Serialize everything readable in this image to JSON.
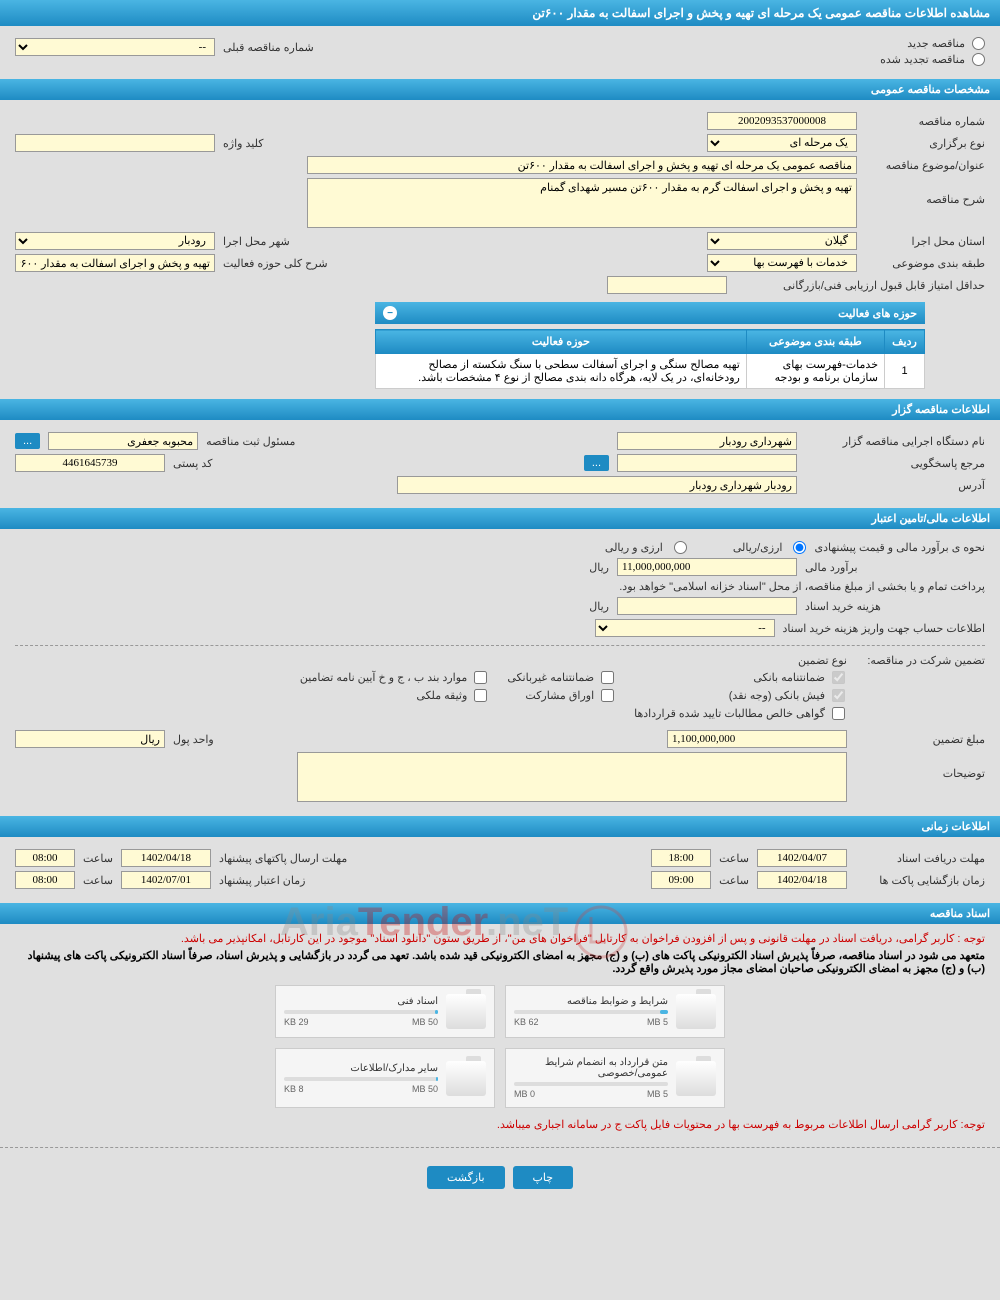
{
  "page": {
    "title": "مشاهده اطلاعات مناقصه عمومی یک مرحله ای تهیه و پخش و اجرای اسفالت به مقدار ۶۰۰تن",
    "bg_color": "#e0e0e0",
    "header_gradient": [
      "#4ab5e3",
      "#1e8bc3"
    ]
  },
  "tender_type": {
    "new_label": "مناقصه جدید",
    "renewed_label": "مناقصه تجدید شده",
    "prev_number_label": "شماره مناقصه قبلی",
    "prev_number_value": "--"
  },
  "general_spec": {
    "header": "مشخصات مناقصه عمومی",
    "tender_number_label": "شماره مناقصه",
    "tender_number": "2002093537000008",
    "holding_type_label": "نوع برگزاری",
    "holding_type": "یک مرحله ای",
    "keyword_label": "کلید واژه",
    "keyword": "",
    "subject_label": "عنوان/موضوع مناقصه",
    "subject": "مناقصه عمومی یک مرحله ای تهیه و پخش و اجرای اسفالت به مقدار ۶۰۰تن",
    "description_label": "شرح مناقصه",
    "description": "تهیه و پخش و اجرای اسفالت گرم به مقدار ۶۰۰تن مسیر شهدای گمنام",
    "province_label": "استان محل اجرا",
    "province": "گیلان",
    "city_label": "شهر محل اجرا",
    "city": "رودبار",
    "subject_class_label": "طبقه بندی موضوعی",
    "subject_class": "خدمات با فهرست بها",
    "activity_scope_label": "شرح کلی حوزه فعالیت",
    "activity_scope": "تهیه و پخش و اجرای اسفالت به مقدار ۶۰۰تن مسیر شهدای",
    "min_score_label": "حداقل امتیاز قابل قبول ارزیابی فنی/بازرگانی",
    "min_score": ""
  },
  "activity_areas": {
    "title": "حوزه های فعالیت",
    "columns": [
      "ردیف",
      "طبقه بندی موضوعی",
      "حوزه فعالیت"
    ],
    "rows": [
      [
        "1",
        "خدمات-فهرست بهای سازمان برنامه و بودجه",
        "تهیه مصالح سنگی و اجرای آسفالت سطحی با سنگ شکسته از مصالح رودخانه‌ای، در یک لایه، هرگاه دانه بندی مصالح از نوع ۴ مشخصات باشد."
      ]
    ]
  },
  "holder_info": {
    "header": "اطلاعات مناقصه گزار",
    "org_label": "نام دستگاه اجرایی مناقصه گزار",
    "org": "شهرداری رودبار",
    "registrar_label": "مسئول ثبت مناقصه",
    "registrar": "محبوبه جعفری",
    "more_btn": "...",
    "responder_label": "مرجع پاسخگویی",
    "responder": "",
    "postal_label": "کد پستی",
    "postal": "4461645739",
    "address_label": "آدرس",
    "address": "رودبار شهرداری رودبار"
  },
  "financial": {
    "header": "اطلاعات مالی/تامین اعتبار",
    "estimate_method_label": "نحوه ی برآورد مالی و قیمت پیشنهادی",
    "estimate_rial": "ارزی/ریالی",
    "estimate_currency": "ارزی و ریالی",
    "estimate_label": "برآورد مالی",
    "estimate_value": "11,000,000,000",
    "rial_unit": "ریال",
    "treasury_note": "پرداخت تمام و یا بخشی از مبلغ مناقصه، از محل \"اسناد خزانه اسلامی\" خواهد بود.",
    "doc_cost_label": "هزینه خرید اسناد",
    "doc_cost": "",
    "doc_cost_unit": "ریال",
    "account_info_label": "اطلاعات حساب جهت واریز هزینه خرید اسناد",
    "account_info": "--",
    "guarantee_label": "تضمین شرکت در مناقصه:",
    "guarantee_type_label": "نوع تضمین",
    "bank_guarantee": "ضمانتنامه بانکی",
    "nonbank_guarantee": "ضمانتنامه غیربانکی",
    "bchkh_items": "موارد بند ب ، ج و خ آیین نامه تضامین",
    "cash": "فیش بانکی (وجه نقد)",
    "participation": "اوراق مشارکت",
    "property": "وثیقه ملکی",
    "receivables": "گواهی خالص مطالبات تایید شده قراردادها",
    "guarantee_amount_label": "مبلغ تضمین",
    "guarantee_amount": "1,100,000,000",
    "currency_unit_label": "واحد پول",
    "currency_unit": "ریال",
    "notes_label": "توضیحات",
    "notes": ""
  },
  "timing": {
    "header": "اطلاعات زمانی",
    "doc_receipt_label": "مهلت دریافت اسناد",
    "doc_receipt_date": "1402/04/07",
    "doc_receipt_time": "18:00",
    "proposal_send_label": "مهلت ارسال پاکتهای پیشنهاد",
    "proposal_send_date": "1402/04/18",
    "proposal_send_time": "08:00",
    "opening_label": "زمان بازگشایی پاکت ها",
    "opening_date": "1402/04/18",
    "opening_time": "09:00",
    "validity_label": "زمان اعتبار پیشنهاد",
    "validity_date": "1402/07/01",
    "validity_time": "08:00",
    "time_label": "ساعت"
  },
  "documents": {
    "header": "اسناد مناقصه",
    "note1": "توجه : کاربر گرامی، دریافت اسناد در مهلت قانونی و پس از افزودن فراخوان به کارتابل \"فراخوان های من\"، از طریق ستون \"دانلود اسناد\" موجود در این کارتابل، امکانپذیر می باشد.",
    "note2": "متعهد می شود در اسناد مناقصه، صرفاً پذیرش اسناد الکترونیکی پاکت های (ب) و (ج) مجهز به امضای الکترونیکی قید شده باشد. تعهد می گردد در بازگشایی و پذیرش اسناد، صرفاً اسناد الکترونیکی پاکت های پیشنهاد (ب) و (ج) مجهز به امضای الکترونیکی صاحبان امضای مجاز مورد پذیرش واقع گردد.",
    "files": [
      {
        "title": "شرایط و ضوابط مناقصه",
        "used": "62 KB",
        "total": "5 MB",
        "pct": 5
      },
      {
        "title": "اسناد فنی",
        "used": "29 KB",
        "total": "50 MB",
        "pct": 2
      },
      {
        "title": "متن قرارداد به انضمام شرایط عمومی/خصوصی",
        "used": "0 MB",
        "total": "5 MB",
        "pct": 0
      },
      {
        "title": "سایر مدارک/اطلاعات",
        "used": "8 KB",
        "total": "50 MB",
        "pct": 1
      }
    ],
    "note3": "توجه: کاربر گرامی ارسال اطلاعات مربوط به فهرست بها در محتویات فایل پاکت ج در سامانه اجباری میباشد."
  },
  "buttons": {
    "print": "چاپ",
    "back": "بازگشت"
  },
  "watermark": {
    "text1": "Aria",
    "text2": "Tender",
    "text3": ".neT"
  }
}
